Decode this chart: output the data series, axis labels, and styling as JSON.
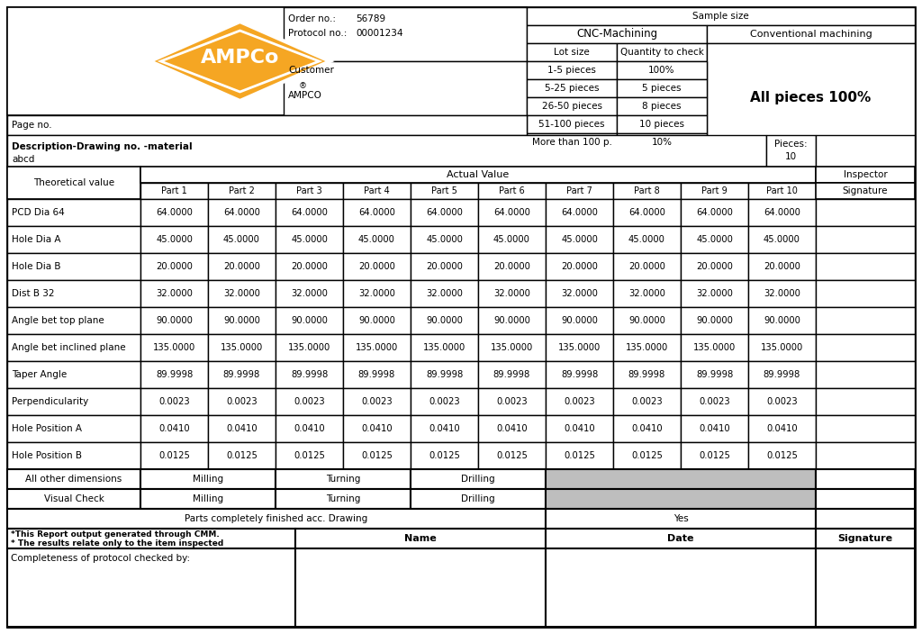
{
  "order_no": "56789",
  "protocol_no": "00001234",
  "customer_label": "Customer",
  "customer_value": "AMPCO",
  "page_no_label": "Page no.",
  "description_label": "Description-Drawing no. -material",
  "description_value": "abcd",
  "pieces_label": "Pieces:",
  "pieces_value": "10",
  "sample_size_label": "Sample size",
  "cnc_label": "CNC-Machining",
  "conv_label": "Conventional machining",
  "conv_value": "All pieces 100%",
  "lot_size_label": "Lot size",
  "qty_check_label": "Quantity to check",
  "lot_rows": [
    [
      "1-5 pieces",
      "100%"
    ],
    [
      "5-25 pieces",
      "5 pieces"
    ],
    [
      "26-50 pieces",
      "8 pieces"
    ],
    [
      "51-100 pieces",
      "10 pieces"
    ],
    [
      "More than 100 p.",
      "10%"
    ]
  ],
  "inspector_label": "Inspector",
  "signature_label": "Signature",
  "actual_value_label": "Actual Value",
  "theoretical_label": "Theoretical value",
  "part_headers": [
    "Part 1",
    "Part 2",
    "Part 3",
    "Part 4",
    "Part 5",
    "Part 6",
    "Part 7",
    "Part 8",
    "Part 9",
    "Part 10"
  ],
  "measurement_rows": [
    {
      "name": "PCD Dia 64",
      "values": [
        "64.0000",
        "64.0000",
        "64.0000",
        "64.0000",
        "64.0000",
        "64.0000",
        "64.0000",
        "64.0000",
        "64.0000",
        "64.0000"
      ]
    },
    {
      "name": "Hole Dia A",
      "values": [
        "45.0000",
        "45.0000",
        "45.0000",
        "45.0000",
        "45.0000",
        "45.0000",
        "45.0000",
        "45.0000",
        "45.0000",
        "45.0000"
      ]
    },
    {
      "name": "Hole Dia B",
      "values": [
        "20.0000",
        "20.0000",
        "20.0000",
        "20.0000",
        "20.0000",
        "20.0000",
        "20.0000",
        "20.0000",
        "20.0000",
        "20.0000"
      ]
    },
    {
      "name": "Dist B 32",
      "values": [
        "32.0000",
        "32.0000",
        "32.0000",
        "32.0000",
        "32.0000",
        "32.0000",
        "32.0000",
        "32.0000",
        "32.0000",
        "32.0000"
      ]
    },
    {
      "name": "Angle bet top plane",
      "values": [
        "90.0000",
        "90.0000",
        "90.0000",
        "90.0000",
        "90.0000",
        "90.0000",
        "90.0000",
        "90.0000",
        "90.0000",
        "90.0000"
      ]
    },
    {
      "name": "Angle bet inclined plane",
      "values": [
        "135.0000",
        "135.0000",
        "135.0000",
        "135.0000",
        "135.0000",
        "135.0000",
        "135.0000",
        "135.0000",
        "135.0000",
        "135.0000"
      ]
    },
    {
      "name": "Taper Angle",
      "values": [
        "89.9998",
        "89.9998",
        "89.9998",
        "89.9998",
        "89.9998",
        "89.9998",
        "89.9998",
        "89.9998",
        "89.9998",
        "89.9998"
      ]
    },
    {
      "name": "Perpendicularity",
      "values": [
        "0.0023",
        "0.0023",
        "0.0023",
        "0.0023",
        "0.0023",
        "0.0023",
        "0.0023",
        "0.0023",
        "0.0023",
        "0.0023"
      ]
    },
    {
      "name": "Hole Position A",
      "values": [
        "0.0410",
        "0.0410",
        "0.0410",
        "0.0410",
        "0.0410",
        "0.0410",
        "0.0410",
        "0.0410",
        "0.0410",
        "0.0410"
      ]
    },
    {
      "name": "Hole Position B",
      "values": [
        "0.0125",
        "0.0125",
        "0.0125",
        "0.0125",
        "0.0125",
        "0.0125",
        "0.0125",
        "0.0125",
        "0.0125",
        "0.0125"
      ]
    }
  ],
  "all_other_dimensions_label": "All other dimensions",
  "visual_check_label": "Visual Check",
  "milling_label": "Milling",
  "turning_label": "Turning",
  "drilling_label": "Drilling",
  "parts_finished_label": "Parts completely finished acc. Drawing",
  "yes_label": "Yes",
  "cmm_note1": "*This Report output generated through CMM.",
  "cmm_note2": "* The results relate only to the item inspected",
  "name_label": "Name",
  "date_label": "Date",
  "signature_label2": "Signature",
  "completeness_label": "Completeness of protocol checked by:",
  "orange_color": "#F5A623",
  "gray_color": "#BEBEBE",
  "bg_color": "#FFFFFF"
}
